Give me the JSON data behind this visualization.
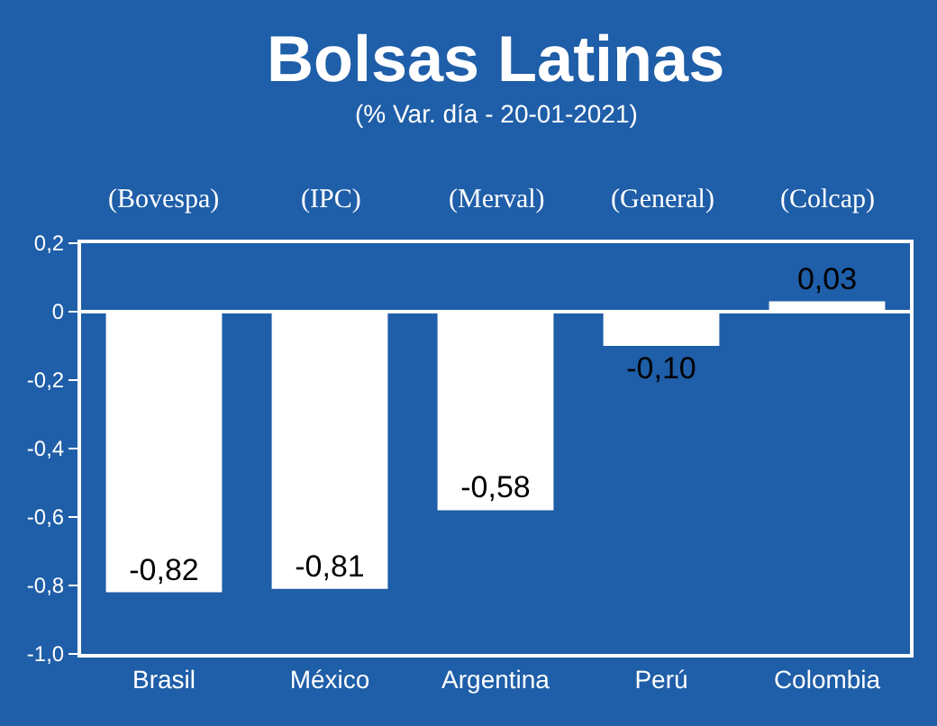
{
  "chart_data": {
    "type": "bar",
    "title": "Bolsas Latinas",
    "subtitle": "(% Var. día - 20-01-2021)",
    "categories": [
      "Brasil",
      "México",
      "Argentina",
      "Perú",
      "Colombia"
    ],
    "values": [
      -0.82,
      -0.81,
      -0.58,
      -0.1,
      0.03
    ],
    "value_labels": [
      "-0,82",
      "-0,81",
      "-0,58",
      "-0,10",
      "0,03"
    ],
    "color": "#ffffff",
    "annotations": [
      "(Bovespa)",
      "(IPC)",
      "(Merval)",
      "(General)",
      "(Colcap)"
    ],
    "ylim": [
      -1.0,
      0.2
    ],
    "yticks": [
      {
        "value": 0.2,
        "label": "0,2"
      },
      0,
      {
        "value": -0.2,
        "label": "-0,2"
      },
      {
        "value": -0.4,
        "label": "-0,4"
      },
      {
        "value": -0.6,
        "label": "-0,6"
      },
      {
        "value": -0.8,
        "label": "-0,8"
      },
      {
        "value": -1.0,
        "label": "-1,0"
      }
    ],
    "ref_lines": [
      {
        "axis": "y",
        "value": 0,
        "color": "#ffffff"
      }
    ],
    "grid": false,
    "legend": false
  }
}
